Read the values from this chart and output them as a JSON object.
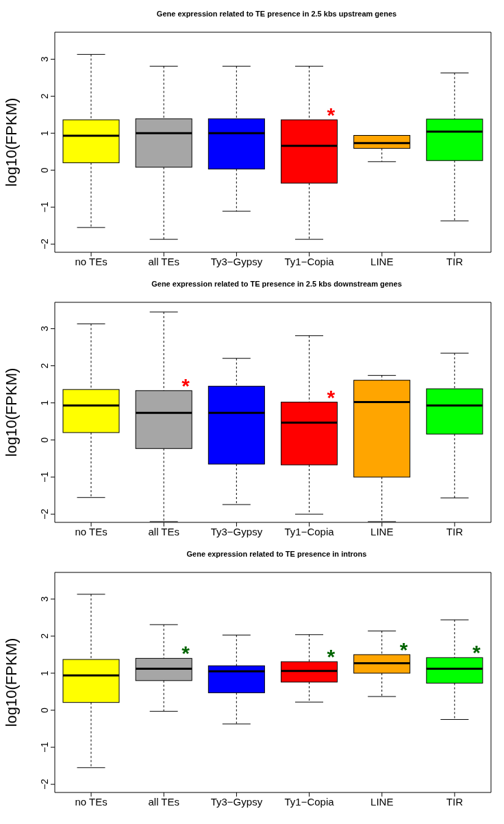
{
  "chart_data": [
    {
      "type": "box",
      "title": "Gene expression related to TE presence in 2.5 kbs upstream genes",
      "ylabel": "log10(FPKM)",
      "categories": [
        "no TEs",
        "all TEs",
        "Ty3−Gypsy",
        "Ty1−Copia",
        "LINE",
        "TIR"
      ],
      "colors": [
        "#ffff00",
        "#a6a6a6",
        "#0000ff",
        "#ff0000",
        "#ffa500",
        "#00ff00"
      ],
      "boxes": [
        {
          "low": -1.55,
          "q1": 0.2,
          "median": 0.93,
          "q3": 1.36,
          "high": 3.13
        },
        {
          "low": -1.87,
          "q1": 0.08,
          "median": 1.0,
          "q3": 1.39,
          "high": 2.81
        },
        {
          "low": -1.11,
          "q1": 0.03,
          "median": 1.0,
          "q3": 1.39,
          "high": 2.81
        },
        {
          "low": -1.87,
          "q1": -0.35,
          "median": 0.66,
          "q3": 1.36,
          "high": 2.81
        },
        {
          "low": 0.23,
          "q1": 0.59,
          "median": 0.73,
          "q3": 0.94,
          "high": 0.94
        },
        {
          "low": -1.37,
          "q1": 0.26,
          "median": 1.04,
          "q3": 1.38,
          "high": 2.63
        }
      ],
      "ylim": [
        -2.22,
        3.73
      ],
      "yticks": [
        -2,
        -1,
        0,
        1,
        2,
        3
      ],
      "annotations": [
        {
          "text": "*",
          "x": "Ty1−Copia",
          "y": 1.65
        }
      ]
    },
    {
      "type": "box",
      "title": "Gene expression related to TE presence in 2.5 kbs downstream genes",
      "ylabel": "log10(FPKM)",
      "categories": [
        "no TEs",
        "all TEs",
        "Ty3−Gypsy",
        "Ty1−Copia",
        "LINE",
        "TIR"
      ],
      "colors": [
        "#ffff00",
        "#a6a6a6",
        "#0000ff",
        "#ff0000",
        "#ffa500",
        "#00ff00"
      ],
      "boxes": [
        {
          "low": -1.55,
          "q1": 0.2,
          "median": 0.93,
          "q3": 1.36,
          "high": 3.13
        },
        {
          "low": -2.2,
          "q1": -0.23,
          "median": 0.73,
          "q3": 1.33,
          "high": 3.45
        },
        {
          "low": -1.74,
          "q1": -0.65,
          "median": 0.73,
          "q3": 1.45,
          "high": 2.2
        },
        {
          "low": -2.0,
          "q1": -0.67,
          "median": 0.47,
          "q3": 1.02,
          "high": 2.81
        },
        {
          "low": -2.2,
          "q1": -1.0,
          "median": 1.02,
          "q3": 1.61,
          "high": 1.74
        },
        {
          "low": -1.56,
          "q1": 0.16,
          "median": 0.93,
          "q3": 1.38,
          "high": 2.34
        }
      ],
      "ylim": [
        -2.22,
        3.71
      ],
      "yticks": [
        -2,
        -1,
        0,
        1,
        2,
        3
      ],
      "annotations": [
        {
          "text": "*",
          "x": "all TEs",
          "y": 1.61
        },
        {
          "text": "*",
          "x": "Ty1−Copia",
          "y": 1.31
        }
      ]
    },
    {
      "type": "box",
      "title": "Gene expression related to TE presence in introns",
      "ylabel": "log10(FPKM)",
      "categories": [
        "no TEs",
        "all TEs",
        "Ty3−Gypsy",
        "Ty1−Copia",
        "LINE",
        "TIR"
      ],
      "colors": [
        "#ffff00",
        "#a6a6a6",
        "#0000ff",
        "#ff0000",
        "#ffa500",
        "#00ff00"
      ],
      "boxes": [
        {
          "low": -1.55,
          "q1": 0.21,
          "median": 0.94,
          "q3": 1.37,
          "high": 3.13
        },
        {
          "low": -0.03,
          "q1": 0.8,
          "median": 1.12,
          "q3": 1.4,
          "high": 2.31
        },
        {
          "low": -0.37,
          "q1": 0.47,
          "median": 1.05,
          "q3": 1.2,
          "high": 2.03
        },
        {
          "low": 0.22,
          "q1": 0.76,
          "median": 1.06,
          "q3": 1.31,
          "high": 2.04
        },
        {
          "low": 0.37,
          "q1": 1.0,
          "median": 1.27,
          "q3": 1.5,
          "high": 2.14
        },
        {
          "low": -0.25,
          "q1": 0.73,
          "median": 1.12,
          "q3": 1.42,
          "high": 2.44
        }
      ],
      "ylim": [
        -2.22,
        3.72
      ],
      "yticks": [
        -2,
        -1,
        0,
        1,
        2,
        3
      ],
      "annotations": [
        {
          "text": "*",
          "x": "all TEs",
          "y": 1.69
        },
        {
          "text": "*",
          "x": "Ty1−Copia",
          "y": 1.6
        },
        {
          "text": "*",
          "x": "LINE",
          "y": 1.79
        },
        {
          "text": "*",
          "x": "TIR",
          "y": 1.71
        }
      ]
    }
  ]
}
